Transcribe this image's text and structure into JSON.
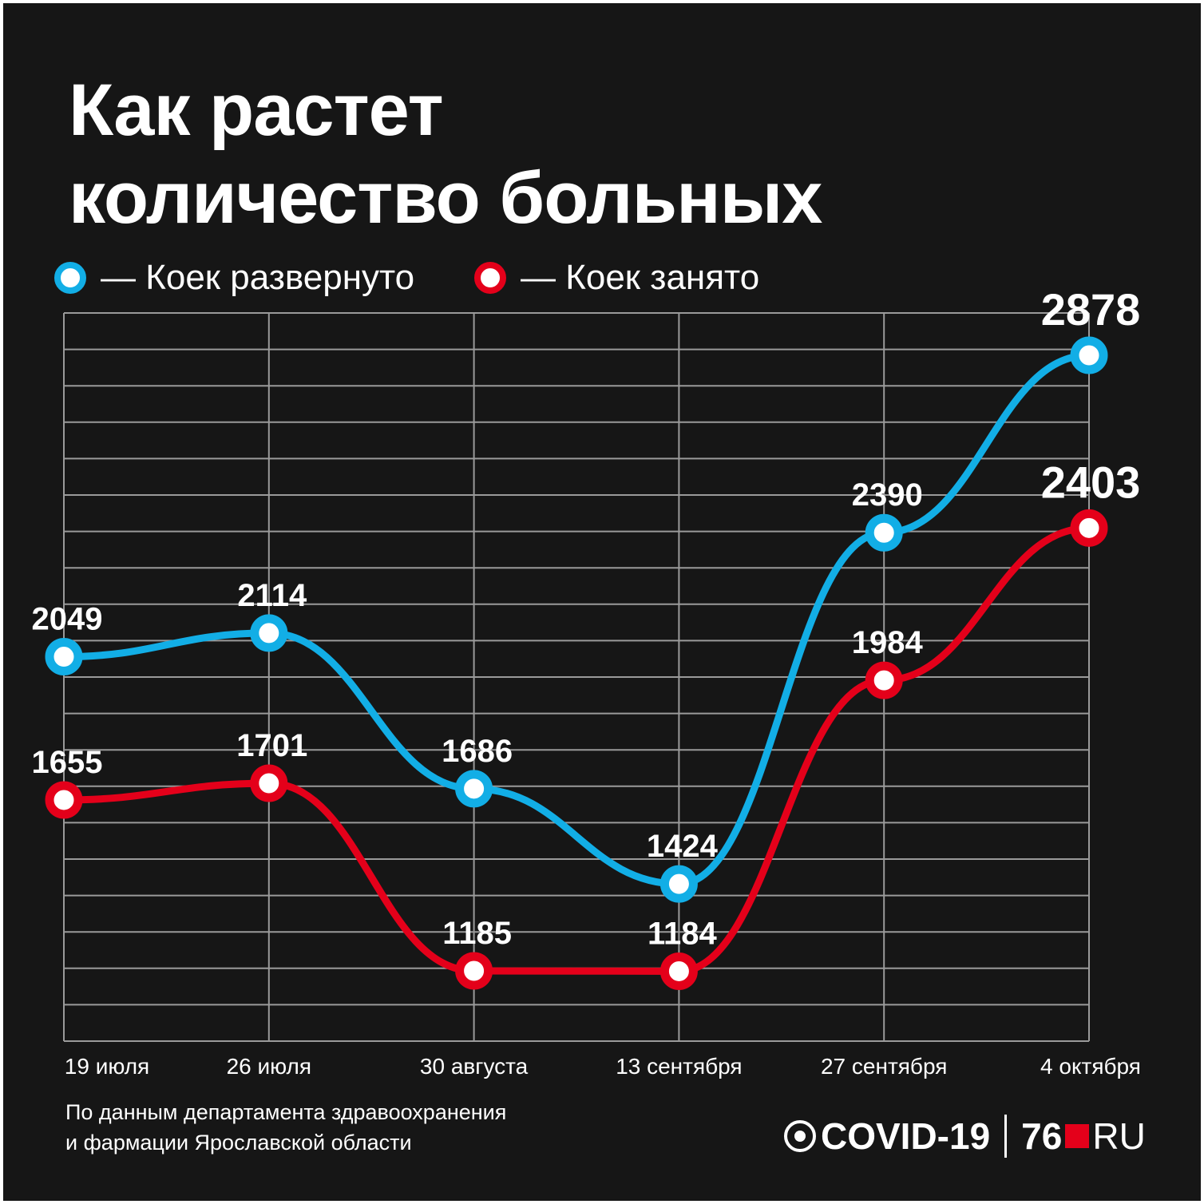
{
  "title": {
    "line1": "Как растет",
    "line2": "количество больных"
  },
  "legend": {
    "blue": "— Коек развернуто",
    "red": "— Коек занято"
  },
  "colors": {
    "background": "#161616",
    "blue": "#12aee6",
    "red": "#e4001a",
    "grid": "#9a9a9a",
    "text": "#ffffff"
  },
  "chart_data": {
    "type": "line",
    "categories": [
      "19 июля",
      "26 июля",
      "30 августа",
      "13 сентября",
      "27 сентября",
      "4 октября"
    ],
    "series": [
      {
        "name": "Коек развернуто",
        "color": "#12aee6",
        "values": [
          2049,
          2114,
          1686,
          1424,
          2390,
          2878
        ]
      },
      {
        "name": "Коек занято",
        "color": "#e4001a",
        "values": [
          1655,
          1701,
          1185,
          1184,
          1984,
          2403
        ]
      }
    ],
    "ylim": [
      800,
      3000
    ],
    "grid": true,
    "legend_position": "top-left",
    "title": "Как растет количество больных",
    "xlabel": "",
    "ylabel": ""
  },
  "source": {
    "line1": "По данным департамента здравоохранения",
    "line2": "и фармации Ярославской области"
  },
  "brand": {
    "covid": "COVID-19",
    "num": "76",
    "ru": "RU"
  }
}
